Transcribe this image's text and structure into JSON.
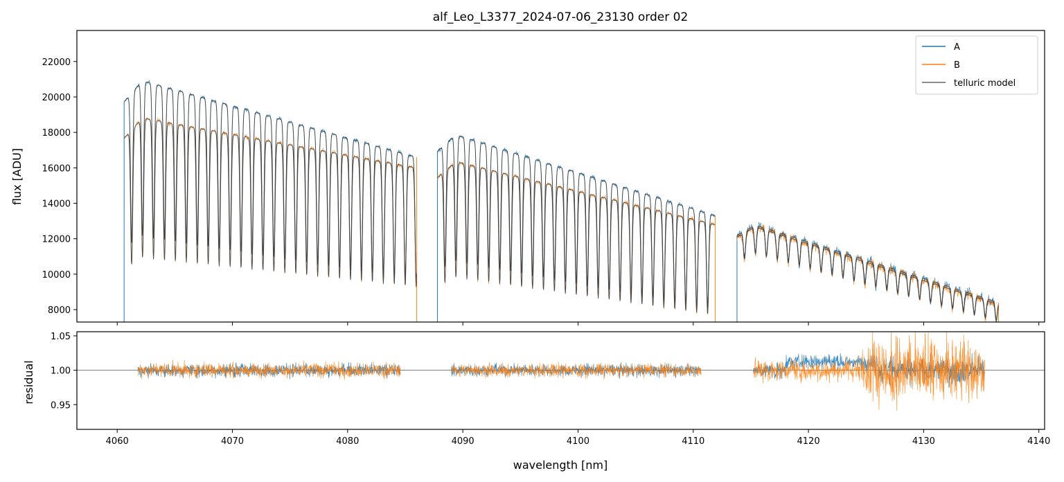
{
  "chart_data": [
    {
      "panel": "top",
      "type": "line",
      "title": "alf_Leo_L3377_2024-07-06_23130  order 02",
      "xlabel": "",
      "ylabel": "flux [ADU]",
      "xlim": [
        4056.5,
        4140.5
      ],
      "ylim": [
        7300,
        23750
      ],
      "x_ticks": [
        4060,
        4070,
        4080,
        4090,
        4100,
        4110,
        4120,
        4130,
        4140
      ],
      "y_ticks": [
        8000,
        10000,
        12000,
        14000,
        16000,
        18000,
        20000,
        22000
      ],
      "y_tick_labels": [
        "8000",
        "10000",
        "12000",
        "14000",
        "16000",
        "18000",
        "20000",
        "22000"
      ],
      "legend_position": "top-right",
      "legend": [
        "A",
        "B",
        "telluric model"
      ],
      "segments": [
        {
          "x_start": 4060.6,
          "x_end": 4086.0,
          "A_start": 21200,
          "A_end": 16600,
          "B_start": 19000,
          "B_end": 16000,
          "peak": 4062.0,
          "line_spacing": 0.95,
          "depth_A": 0.42,
          "depth_B": 0.42
        },
        {
          "x_start": 4087.8,
          "x_end": 4111.9,
          "A_start": 18200,
          "A_end": 13300,
          "B_start": 16600,
          "B_end": 12800,
          "peak": 4087.8,
          "line_spacing": 0.95,
          "depth_A": 0.4,
          "depth_B": 0.4
        },
        {
          "x_start": 4113.8,
          "x_end": 4136.5,
          "A_start": 13100,
          "A_end": 8400,
          "B_start": 13000,
          "B_end": 8300,
          "peak": 4113.8,
          "line_spacing": 0.95,
          "depth_A": 0.12,
          "depth_B": 0.12
        }
      ],
      "series": [
        {
          "name": "A",
          "color": "#1f77b4"
        },
        {
          "name": "B",
          "color": "#ff7f0e"
        },
        {
          "name": "telluric model",
          "color": "#404040"
        }
      ]
    },
    {
      "panel": "bottom",
      "type": "line",
      "title": "",
      "xlabel": "wavelength [nm]",
      "ylabel": "residual",
      "xlim": [
        4056.5,
        4140.5
      ],
      "ylim": [
        0.914,
        1.056
      ],
      "x_ticks": [
        4060,
        4070,
        4080,
        4090,
        4100,
        4110,
        4120,
        4130,
        4140
      ],
      "x_tick_labels": [
        "4060",
        "4070",
        "4080",
        "4090",
        "4100",
        "4110",
        "4120",
        "4130",
        "4140"
      ],
      "y_ticks": [
        0.95,
        1.0,
        1.05
      ],
      "y_tick_labels": [
        "0.95",
        "1.00",
        "1.05"
      ],
      "reference_line": 1.0,
      "segments": [
        {
          "x_start": 4061.8,
          "x_end": 4084.6,
          "noise_A": 0.012,
          "noise_B": 0.013
        },
        {
          "x_start": 4089.0,
          "x_end": 4110.7,
          "noise_A": 0.011,
          "noise_B": 0.012
        },
        {
          "x_start": 4115.2,
          "x_end": 4135.3,
          "noise_A": 0.014,
          "noise_B": 0.02,
          "high_noise_start": 4124.0,
          "high_noise_end": 4135.3,
          "high_noise_amp": 0.06
        }
      ],
      "series": [
        {
          "name": "A",
          "color": "#1f77b4"
        },
        {
          "name": "B",
          "color": "#ff7f0e"
        }
      ]
    }
  ]
}
